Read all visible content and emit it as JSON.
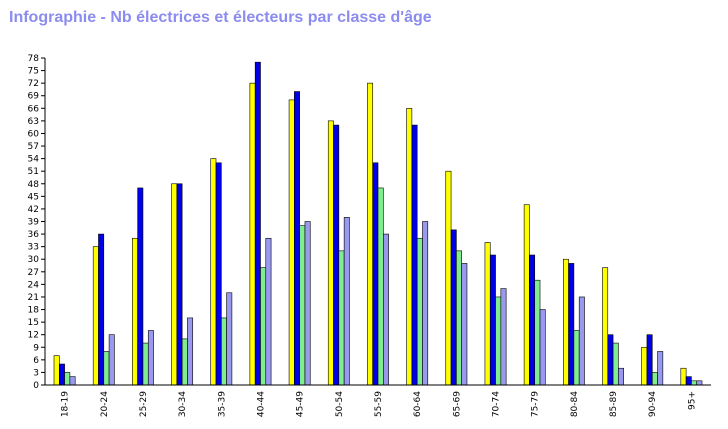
{
  "chart_data": {
    "type": "bar",
    "title": "Infographie - Nb électrices et électeurs par classe d'âge",
    "xlabel": "",
    "ylabel": "",
    "ylim": [
      0,
      78
    ],
    "yticks": [
      0,
      3,
      6,
      9,
      12,
      15,
      18,
      21,
      24,
      27,
      30,
      33,
      36,
      39,
      42,
      45,
      48,
      51,
      54,
      57,
      60,
      63,
      66,
      69,
      72,
      75,
      78
    ],
    "grid": false,
    "legend": "none",
    "categories": [
      "18-19",
      "20-24",
      "25-29",
      "30-34",
      "35-39",
      "40-44",
      "45-49",
      "50-54",
      "55-59",
      "60-64",
      "65-69",
      "70-74",
      "75-79",
      "80-84",
      "85-89",
      "90-94",
      "95+"
    ],
    "series": [
      {
        "color": "#ffff00",
        "values": [
          7,
          33,
          35,
          48,
          54,
          72,
          68,
          63,
          72,
          66,
          51,
          34,
          43,
          30,
          28,
          9,
          4
        ]
      },
      {
        "color": "#0000e6",
        "values": [
          5,
          36,
          47,
          48,
          53,
          77,
          70,
          62,
          53,
          62,
          37,
          31,
          31,
          29,
          12,
          12,
          2
        ]
      },
      {
        "color": "#80ee90",
        "values": [
          3,
          8,
          10,
          11,
          16,
          28,
          38,
          32,
          47,
          35,
          32,
          21,
          25,
          13,
          10,
          3,
          1
        ]
      },
      {
        "color": "#9999f0",
        "values": [
          2,
          12,
          13,
          16,
          22,
          35,
          39,
          40,
          36,
          39,
          29,
          23,
          18,
          21,
          4,
          8,
          1
        ]
      }
    ]
  }
}
